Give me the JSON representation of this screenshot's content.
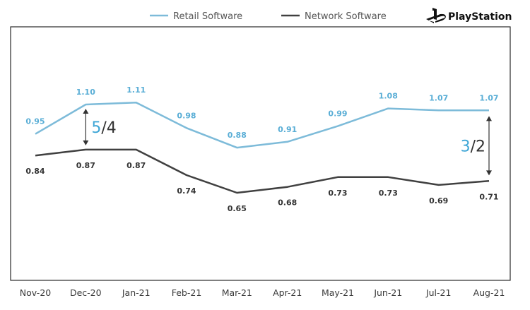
{
  "chart_data": {
    "type": "line",
    "categories": [
      "Nov-20",
      "Dec-20",
      "Jan-21",
      "Feb-21",
      "Mar-21",
      "Apr-21",
      "May-21",
      "Jun-21",
      "Jul-21",
      "Aug-21"
    ],
    "series": [
      {
        "name": "Retail Software",
        "color": "#7dbbd9",
        "labelColor": "#5aaed6",
        "values": [
          0.95,
          1.1,
          1.11,
          0.98,
          0.88,
          0.91,
          0.99,
          1.08,
          1.07,
          1.07
        ],
        "labels": [
          "0.95",
          "1.10",
          "1.11",
          "0.98",
          "0.88",
          "0.91",
          "0.99",
          "1.08",
          "1.07",
          "1.07"
        ]
      },
      {
        "name": "Network Software",
        "color": "#404040",
        "labelColor": "#333333",
        "values": [
          0.84,
          0.87,
          0.87,
          0.74,
          0.65,
          0.68,
          0.73,
          0.73,
          0.69,
          0.71
        ],
        "labels": [
          "0.84",
          "0.87",
          "0.87",
          "0.74",
          "0.65",
          "0.68",
          "0.73",
          "0.73",
          "0.69",
          "0.71"
        ]
      }
    ],
    "legend": "top-center",
    "grid": false,
    "annotations": [
      {
        "between": "Dec-20",
        "numerator": "5",
        "denominator": "4",
        "side": "right"
      },
      {
        "between": "Aug-21",
        "numerator": "3",
        "denominator": "2",
        "side": "left"
      }
    ]
  },
  "brand": {
    "name": "PlayStation",
    "icon": "playstation-logo-icon"
  }
}
